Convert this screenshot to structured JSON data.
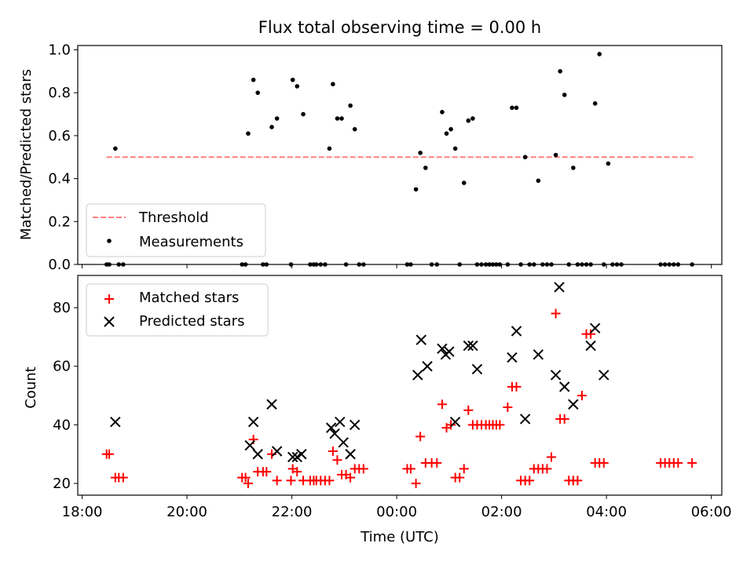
{
  "chart_data": [
    {
      "type": "scatter",
      "title": "Flux total observing time = 0.00 h",
      "xlabel": "",
      "ylabel": "Matched/Predicted stars",
      "xlim": [
        "17:55",
        "06:12"
      ],
      "ylim": [
        0,
        1.02
      ],
      "xticks": [
        "18:00",
        "20:00",
        "22:00",
        "00:00",
        "02:00",
        "04:00",
        "06:00"
      ],
      "yticks": [
        "0.0",
        "0.2",
        "0.4",
        "0.6",
        "0.8",
        "1.0"
      ],
      "legend_position": "lower-left",
      "threshold": {
        "name": "Threshold",
        "value": 0.5,
        "x": [
          "18:28",
          "05:40"
        ],
        "color": "#ff7f7f",
        "style": "dashed"
      },
      "series": [
        {
          "name": "Measurements",
          "marker": "dot",
          "color": "#000000",
          "points": [
            [
              "18:28",
              0
            ],
            [
              "18:31",
              0
            ],
            [
              "18:38",
              0.54
            ],
            [
              "18:42",
              0
            ],
            [
              "18:47",
              0
            ],
            [
              "21:03",
              0
            ],
            [
              "21:07",
              0
            ],
            [
              "21:10",
              0.61
            ],
            [
              "21:16",
              0.86
            ],
            [
              "21:21",
              0.8
            ],
            [
              "21:27",
              0
            ],
            [
              "21:31",
              0
            ],
            [
              "21:37",
              0.64
            ],
            [
              "21:43",
              0.68
            ],
            [
              "21:59",
              0
            ],
            [
              "22:01",
              0.86
            ],
            [
              "22:06",
              0.83
            ],
            [
              "22:13",
              0.7
            ],
            [
              "22:21",
              0
            ],
            [
              "22:25",
              0
            ],
            [
              "22:28",
              0
            ],
            [
              "22:33",
              0
            ],
            [
              "22:38",
              0
            ],
            [
              "22:43",
              0.54
            ],
            [
              "22:47",
              0.84
            ],
            [
              "22:52",
              0.68
            ],
            [
              "22:57",
              0.68
            ],
            [
              "23:02",
              0
            ],
            [
              "23:07",
              0.74
            ],
            [
              "23:12",
              0.63
            ],
            [
              "23:17",
              0
            ],
            [
              "23:22",
              0
            ],
            [
              "00:12",
              0
            ],
            [
              "00:16",
              0
            ],
            [
              "00:22",
              0.35
            ],
            [
              "00:27",
              0.52
            ],
            [
              "00:33",
              0.45
            ],
            [
              "00:40",
              0
            ],
            [
              "00:46",
              0
            ],
            [
              "00:52",
              0.71
            ],
            [
              "00:57",
              0.61
            ],
            [
              "01:02",
              0.63
            ],
            [
              "01:07",
              0.54
            ],
            [
              "01:12",
              0
            ],
            [
              "01:17",
              0.38
            ],
            [
              "01:22",
              0.67
            ],
            [
              "01:27",
              0.68
            ],
            [
              "01:32",
              0
            ],
            [
              "01:37",
              0
            ],
            [
              "01:42",
              0
            ],
            [
              "01:46",
              0
            ],
            [
              "01:50",
              0
            ],
            [
              "01:54",
              0
            ],
            [
              "01:58",
              0
            ],
            [
              "02:07",
              0
            ],
            [
              "02:12",
              0.73
            ],
            [
              "02:17",
              0.73
            ],
            [
              "02:22",
              0
            ],
            [
              "02:27",
              0.5
            ],
            [
              "02:32",
              0
            ],
            [
              "02:37",
              0
            ],
            [
              "02:42",
              0.39
            ],
            [
              "02:47",
              0
            ],
            [
              "02:52",
              0
            ],
            [
              "02:57",
              0
            ],
            [
              "03:02",
              0.51
            ],
            [
              "03:07",
              0.9
            ],
            [
              "03:12",
              0.79
            ],
            [
              "03:17",
              0
            ],
            [
              "03:22",
              0.45
            ],
            [
              "03:27",
              0
            ],
            [
              "03:32",
              0
            ],
            [
              "03:37",
              0
            ],
            [
              "03:42",
              0
            ],
            [
              "03:47",
              0.75
            ],
            [
              "03:52",
              0.98
            ],
            [
              "03:57",
              0
            ],
            [
              "04:02",
              0.47
            ],
            [
              "04:07",
              0
            ],
            [
              "04:12",
              0
            ],
            [
              "04:17",
              0
            ],
            [
              "05:02",
              0
            ],
            [
              "05:07",
              0
            ],
            [
              "05:12",
              0
            ],
            [
              "05:17",
              0
            ],
            [
              "05:22",
              0
            ],
            [
              "05:38",
              0
            ]
          ]
        }
      ]
    },
    {
      "type": "scatter",
      "title": "",
      "xlabel": "Time (UTC)",
      "ylabel": "Count",
      "xlim": [
        "17:55",
        "06:12"
      ],
      "ylim": [
        16,
        91
      ],
      "xticks": [
        "18:00",
        "20:00",
        "22:00",
        "00:00",
        "02:00",
        "04:00",
        "06:00"
      ],
      "yticks": [
        "20",
        "40",
        "60",
        "80"
      ],
      "legend_position": "upper-left",
      "series": [
        {
          "name": "Matched stars",
          "marker": "plus",
          "color": "#ff0000",
          "points": [
            [
              "18:28",
              30
            ],
            [
              "18:31",
              30
            ],
            [
              "18:38",
              22
            ],
            [
              "18:42",
              22
            ],
            [
              "18:47",
              22
            ],
            [
              "21:03",
              22
            ],
            [
              "21:07",
              22
            ],
            [
              "21:10",
              20
            ],
            [
              "21:16",
              35
            ],
            [
              "21:21",
              24
            ],
            [
              "21:27",
              24
            ],
            [
              "21:31",
              24
            ],
            [
              "21:37",
              30
            ],
            [
              "21:43",
              21
            ],
            [
              "21:59",
              21
            ],
            [
              "22:01",
              25
            ],
            [
              "22:06",
              24
            ],
            [
              "22:13",
              21
            ],
            [
              "22:21",
              21
            ],
            [
              "22:25",
              21
            ],
            [
              "22:28",
              21
            ],
            [
              "22:33",
              21
            ],
            [
              "22:38",
              21
            ],
            [
              "22:43",
              21
            ],
            [
              "22:47",
              31
            ],
            [
              "22:52",
              28
            ],
            [
              "22:57",
              23
            ],
            [
              "23:02",
              23
            ],
            [
              "23:07",
              22
            ],
            [
              "23:12",
              25
            ],
            [
              "23:17",
              25
            ],
            [
              "23:22",
              25
            ],
            [
              "00:12",
              25
            ],
            [
              "00:16",
              25
            ],
            [
              "00:22",
              20
            ],
            [
              "00:27",
              36
            ],
            [
              "00:33",
              27
            ],
            [
              "00:40",
              27
            ],
            [
              "00:46",
              27
            ],
            [
              "00:52",
              47
            ],
            [
              "00:57",
              39
            ],
            [
              "01:02",
              40
            ],
            [
              "01:07",
              22
            ],
            [
              "01:12",
              22
            ],
            [
              "01:17",
              25
            ],
            [
              "01:22",
              45
            ],
            [
              "01:27",
              40
            ],
            [
              "01:32",
              40
            ],
            [
              "01:37",
              40
            ],
            [
              "01:42",
              40
            ],
            [
              "01:46",
              40
            ],
            [
              "01:50",
              40
            ],
            [
              "01:54",
              40
            ],
            [
              "01:58",
              40
            ],
            [
              "02:07",
              46
            ],
            [
              "02:12",
              53
            ],
            [
              "02:17",
              53
            ],
            [
              "02:22",
              21
            ],
            [
              "02:27",
              21
            ],
            [
              "02:32",
              21
            ],
            [
              "02:37",
              25
            ],
            [
              "02:42",
              25
            ],
            [
              "02:47",
              25
            ],
            [
              "02:52",
              25
            ],
            [
              "02:57",
              29
            ],
            [
              "03:02",
              78
            ],
            [
              "03:07",
              42
            ],
            [
              "03:12",
              42
            ],
            [
              "03:17",
              21
            ],
            [
              "03:22",
              21
            ],
            [
              "03:27",
              21
            ],
            [
              "03:32",
              50
            ],
            [
              "03:37",
              71
            ],
            [
              "03:42",
              71
            ],
            [
              "03:47",
              27
            ],
            [
              "03:52",
              27
            ],
            [
              "03:57",
              27
            ],
            [
              "05:02",
              27
            ],
            [
              "05:07",
              27
            ],
            [
              "05:12",
              27
            ],
            [
              "05:17",
              27
            ],
            [
              "05:22",
              27
            ],
            [
              "05:38",
              27
            ]
          ]
        },
        {
          "name": "Predicted stars",
          "marker": "x",
          "color": "#000000",
          "points": [
            [
              "18:38",
              41
            ],
            [
              "21:12",
              33
            ],
            [
              "21:16",
              41
            ],
            [
              "21:21",
              30
            ],
            [
              "21:37",
              47
            ],
            [
              "21:43",
              31
            ],
            [
              "22:01",
              29
            ],
            [
              "22:06",
              29
            ],
            [
              "22:11",
              30
            ],
            [
              "22:45",
              39
            ],
            [
              "22:49",
              37
            ],
            [
              "22:55",
              41
            ],
            [
              "22:59",
              34
            ],
            [
              "23:07",
              30
            ],
            [
              "23:12",
              40
            ],
            [
              "00:24",
              57
            ],
            [
              "00:28",
              69
            ],
            [
              "00:35",
              60
            ],
            [
              "00:52",
              66
            ],
            [
              "00:56",
              64
            ],
            [
              "01:00",
              65
            ],
            [
              "01:07",
              41
            ],
            [
              "01:22",
              67
            ],
            [
              "01:27",
              67
            ],
            [
              "01:32",
              59
            ],
            [
              "02:12",
              63
            ],
            [
              "02:17",
              72
            ],
            [
              "02:27",
              42
            ],
            [
              "02:42",
              64
            ],
            [
              "03:02",
              57
            ],
            [
              "03:06",
              87
            ],
            [
              "03:12",
              53
            ],
            [
              "03:22",
              47
            ],
            [
              "03:42",
              67
            ],
            [
              "03:47",
              73
            ],
            [
              "03:57",
              57
            ]
          ]
        }
      ]
    }
  ]
}
